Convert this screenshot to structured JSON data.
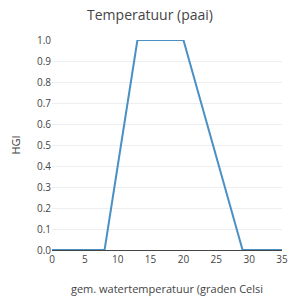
{
  "chart_data": {
    "type": "line",
    "title": "Temperatuur (paai)",
    "xlabel": "gem. watertemperatuur (graden Celsi",
    "ylabel": "HGI",
    "x": [
      0,
      8,
      13,
      20,
      29,
      35
    ],
    "values": [
      0,
      0,
      1,
      1,
      0,
      0
    ],
    "color": "#4a90c4",
    "xlim": [
      0,
      35
    ],
    "ylim": [
      0,
      1.0
    ],
    "xticks": [
      0,
      5,
      10,
      15,
      20,
      25,
      30,
      35
    ],
    "yticks": [
      {
        "value": 0.0,
        "label": "0.0"
      },
      {
        "value": 0.1,
        "label": "0.1"
      },
      {
        "value": 0.2,
        "label": "0.2"
      },
      {
        "value": 0.3,
        "label": "0.3"
      },
      {
        "value": 0.4,
        "label": "0.4"
      },
      {
        "value": 0.5,
        "label": "0.5"
      },
      {
        "value": 0.6,
        "label": "0.6"
      },
      {
        "value": 0.7,
        "label": "0.7"
      },
      {
        "value": 0.8,
        "label": "0.8"
      },
      {
        "value": 0.9,
        "label": "0.9"
      },
      {
        "value": 1.0,
        "label": "1.0"
      }
    ],
    "grid": "y"
  }
}
